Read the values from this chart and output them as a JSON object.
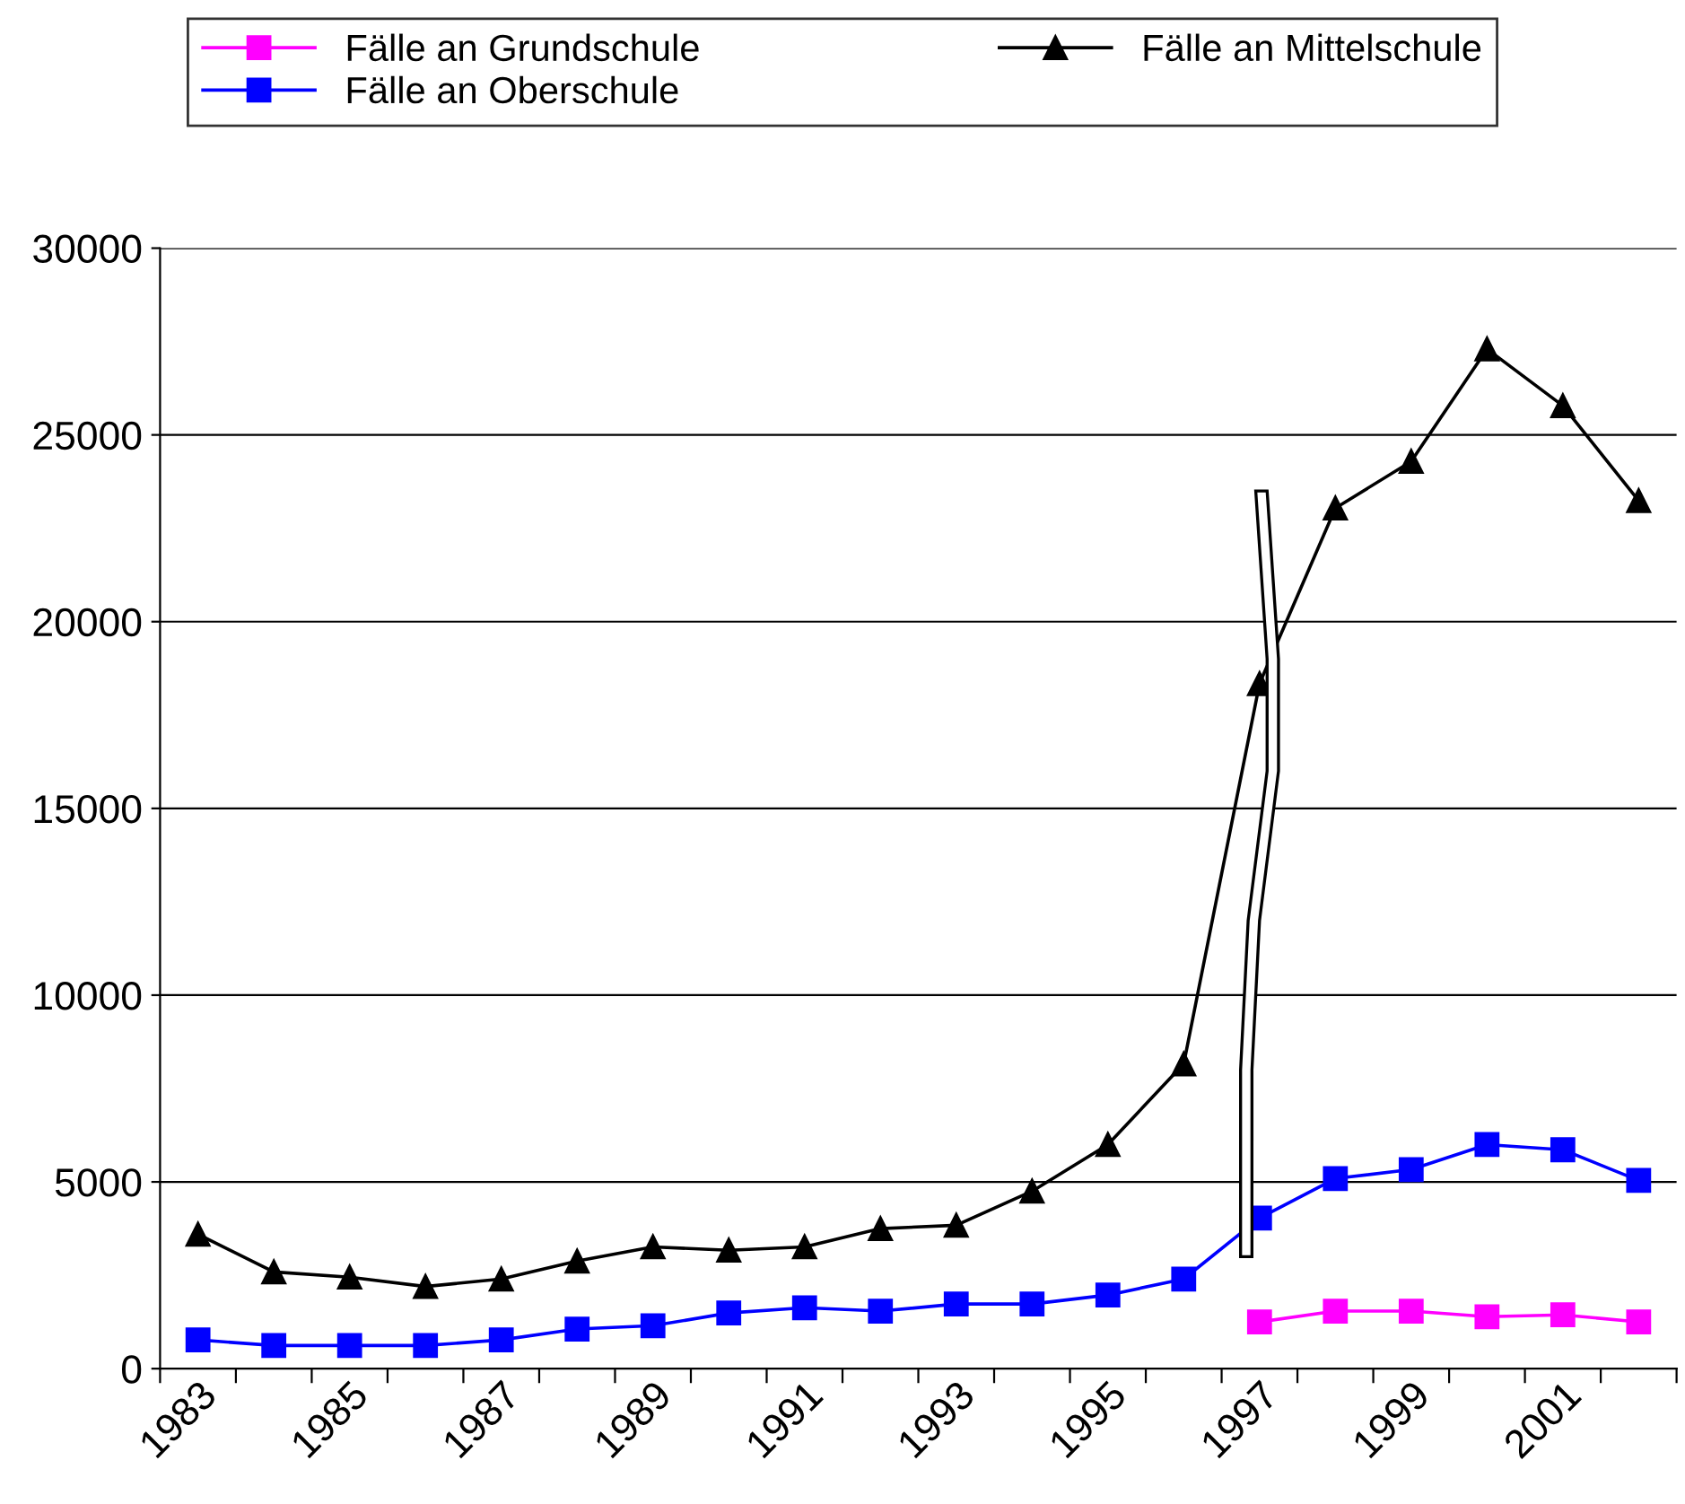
{
  "chart_data": {
    "type": "line",
    "categories": [
      "1983",
      null,
      "1985",
      null,
      "1987",
      null,
      "1989",
      null,
      "1991",
      null,
      "1993",
      null,
      "1995",
      null,
      "1997",
      null,
      "1999",
      null,
      "2001",
      null
    ],
    "series": [
      {
        "name": "Fälle an Grundschule",
        "color": "#ff00ff",
        "marker": "square",
        "values": [
          null,
          null,
          null,
          null,
          null,
          null,
          null,
          null,
          null,
          null,
          null,
          null,
          null,
          null,
          1250,
          1540,
          1540,
          1390,
          1440,
          1250
        ]
      },
      {
        "name": "Fälle an Mittelschule",
        "color": "#000000",
        "marker": "triangle",
        "values": [
          3600,
          2590,
          2450,
          2200,
          2400,
          2880,
          3260,
          3170,
          3260,
          3750,
          3840,
          4750,
          6000,
          8160,
          18340,
          23040,
          24290,
          27300,
          25780,
          23240
        ]
      },
      {
        "name": "Fälle an Oberschule",
        "color": "#0000ff",
        "marker": "square",
        "values": [
          770,
          620,
          620,
          620,
          770,
          1060,
          1150,
          1490,
          1630,
          1540,
          1730,
          1730,
          1970,
          2400,
          4030,
          5090,
          5330,
          6000,
          5860,
          5040
        ]
      }
    ],
    "ylim": [
      0,
      30000
    ],
    "yticks": [
      0,
      5000,
      10000,
      15000,
      20000,
      25000,
      30000
    ],
    "grid": "y",
    "legend": "top",
    "line_style": "solid"
  }
}
